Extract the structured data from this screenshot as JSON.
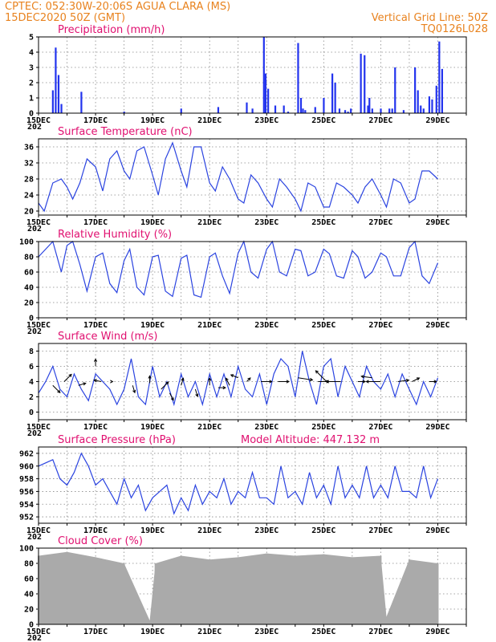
{
  "header": {
    "line1_left": "CPTEC:   052:30W-20:06S   AGUA CLARA (MS)",
    "line2_left": "15DEC2020 50Z (GMT)",
    "line2_right": "Vertical Grid Line: 50Z",
    "line3_right": "TQ0126L028"
  },
  "colors": {
    "header": "#e8821e",
    "title": "#e01070",
    "series": "#2a43e0",
    "bar": "#2233ee",
    "cloud": "#aaaaaa"
  },
  "x_tick_labels": [
    "15DEC",
    "17DEC",
    "19DEC",
    "21DEC",
    "23DEC",
    "25DEC",
    "27DEC",
    "29DEC"
  ],
  "x_year_fragment": "202",
  "chart_data": [
    {
      "id": "precip",
      "type": "bar",
      "title": "Precipitation (mm/h)",
      "ylim": [
        0,
        5
      ],
      "yticks": [
        0,
        1,
        2,
        3,
        4,
        5
      ],
      "x": [
        0.5,
        0.6,
        0.7,
        0.8,
        1.5,
        3.0,
        5.0,
        6.3,
        7.3,
        7.5,
        7.9,
        7.96,
        8.05,
        8.3,
        8.6,
        8.75,
        9.1,
        9.2,
        9.27,
        9.35,
        9.7,
        10.0,
        10.3,
        10.4,
        10.55,
        10.75,
        10.85,
        10.95,
        11.3,
        11.43,
        11.55,
        11.6,
        11.7,
        12.0,
        12.3,
        12.4,
        12.5,
        12.8,
        13.2,
        13.3,
        13.4,
        13.5,
        13.7,
        13.8,
        13.95,
        14.05,
        14.15
      ],
      "values": [
        1.5,
        4.3,
        2.5,
        0.6,
        1.4,
        0.1,
        0.3,
        0.4,
        0.7,
        0.3,
        5.0,
        2.6,
        1.6,
        0.5,
        0.5,
        0.1,
        4.6,
        1.0,
        0.3,
        0.2,
        0.4,
        1.0,
        2.6,
        2.0,
        0.3,
        0.2,
        0.1,
        0.3,
        3.9,
        3.8,
        0.5,
        1.0,
        0.3,
        0.3,
        0.3,
        0.3,
        3.0,
        0.2,
        3.0,
        1.5,
        0.5,
        0.3,
        1.1,
        0.9,
        1.8,
        4.7,
        2.9
      ]
    },
    {
      "id": "temp",
      "type": "line",
      "title": "Surface Temperature (nC)",
      "ylim": [
        19,
        38
      ],
      "yticks": [
        20,
        24,
        28,
        32,
        36
      ],
      "x": [
        0,
        0.2,
        0.5,
        0.8,
        1.0,
        1.2,
        1.45,
        1.7,
        2.0,
        2.25,
        2.5,
        2.75,
        3.0,
        3.2,
        3.45,
        3.7,
        4.0,
        4.2,
        4.45,
        4.7,
        5.0,
        5.2,
        5.45,
        5.7,
        6.0,
        6.2,
        6.45,
        6.7,
        7.0,
        7.2,
        7.45,
        7.7,
        8.0,
        8.2,
        8.45,
        8.7,
        9.0,
        9.2,
        9.45,
        9.7,
        10.0,
        10.2,
        10.45,
        10.7,
        11.0,
        11.2,
        11.45,
        11.7,
        12.0,
        12.2,
        12.45,
        12.7,
        13.0,
        13.2,
        13.45,
        13.7,
        14.0
      ],
      "values": [
        22,
        20,
        27,
        28,
        26,
        23,
        27,
        33,
        31,
        25,
        33,
        35,
        30,
        28,
        35,
        36,
        29,
        24,
        33,
        37,
        30,
        26,
        36,
        36,
        27,
        25,
        31,
        28,
        23,
        22,
        29,
        27,
        23,
        21,
        28,
        26,
        23,
        20,
        27,
        26,
        21,
        21,
        27,
        26,
        24,
        22,
        26,
        28,
        24,
        21,
        28,
        27,
        22,
        23,
        30,
        30,
        28
      ]
    },
    {
      "id": "rh",
      "type": "line",
      "title": "Relative Humidity (%)",
      "ylim": [
        0,
        100
      ],
      "yticks": [
        0,
        20,
        40,
        60,
        80,
        100
      ],
      "x": [
        0,
        0.2,
        0.5,
        0.8,
        1.0,
        1.2,
        1.45,
        1.7,
        2.0,
        2.25,
        2.5,
        2.75,
        3.0,
        3.2,
        3.45,
        3.7,
        4.0,
        4.2,
        4.45,
        4.7,
        5.0,
        5.2,
        5.45,
        5.7,
        6.0,
        6.2,
        6.45,
        6.7,
        7.0,
        7.2,
        7.45,
        7.7,
        8.0,
        8.2,
        8.45,
        8.7,
        9.0,
        9.2,
        9.45,
        9.7,
        10.0,
        10.2,
        10.45,
        10.7,
        11.0,
        11.2,
        11.45,
        11.7,
        12.0,
        12.2,
        12.45,
        12.7,
        13.0,
        13.2,
        13.45,
        13.7,
        14.0
      ],
      "values": [
        80,
        88,
        100,
        60,
        95,
        100,
        70,
        35,
        80,
        85,
        45,
        33,
        75,
        90,
        40,
        30,
        80,
        82,
        35,
        28,
        78,
        82,
        30,
        27,
        80,
        85,
        55,
        32,
        85,
        100,
        60,
        52,
        90,
        100,
        60,
        55,
        90,
        88,
        55,
        60,
        90,
        84,
        55,
        52,
        88,
        80,
        52,
        60,
        85,
        80,
        55,
        55,
        92,
        100,
        55,
        45,
        72
      ]
    },
    {
      "id": "wind",
      "type": "line",
      "title": "Surface Wind (m/s)",
      "ylim": [
        -1,
        9
      ],
      "yticks": [
        0,
        2,
        4,
        6,
        8
      ],
      "x": [
        0,
        0.25,
        0.5,
        0.75,
        1.0,
        1.25,
        1.5,
        1.75,
        2.0,
        2.25,
        2.5,
        2.75,
        3.0,
        3.25,
        3.5,
        3.75,
        4.0,
        4.25,
        4.5,
        4.75,
        5.0,
        5.25,
        5.5,
        5.75,
        6.0,
        6.25,
        6.5,
        6.75,
        7.0,
        7.25,
        7.5,
        7.75,
        8.0,
        8.25,
        8.5,
        8.75,
        9.0,
        9.25,
        9.5,
        9.75,
        10.0,
        10.25,
        10.5,
        10.75,
        11.0,
        11.25,
        11.5,
        11.75,
        12.0,
        12.25,
        12.5,
        12.75,
        13.0,
        13.25,
        13.5,
        13.75,
        14.0
      ],
      "values": [
        2.5,
        4,
        6,
        3,
        2,
        5,
        3,
        1.5,
        5,
        4,
        3,
        1,
        3,
        7,
        2,
        1,
        6,
        2,
        4,
        1,
        5,
        2,
        4,
        1,
        5,
        2,
        5,
        2,
        6,
        3,
        2,
        5,
        1,
        5,
        7,
        6,
        2,
        8,
        4,
        1,
        6,
        7,
        2,
        6,
        4,
        2,
        6,
        4,
        3,
        5,
        2,
        5,
        3,
        1,
        4,
        2,
        4.5
      ],
      "arrows": [
        {
          "x": 0.5,
          "y": 3.5,
          "dx": 1,
          "dy": -1
        },
        {
          "x": 0.9,
          "y": 4,
          "dx": 1,
          "dy": 1
        },
        {
          "x": 1.4,
          "y": 3.5,
          "dx": 1,
          "dy": 0.3
        },
        {
          "x": 2.0,
          "y": 6,
          "dx": 0,
          "dy": 1
        },
        {
          "x": 2.2,
          "y": 4,
          "dx": -1,
          "dy": 0.2
        },
        {
          "x": 2.6,
          "y": 4,
          "dx": 0,
          "dy": 0
        },
        {
          "x": 3.3,
          "y": 3.5,
          "dx": 0.3,
          "dy": -1
        },
        {
          "x": 3.9,
          "y": 3.8,
          "dx": 0,
          "dy": 1
        },
        {
          "x": 4.3,
          "y": 3,
          "dx": 1,
          "dy": 1
        },
        {
          "x": 4.6,
          "y": 2.5,
          "dx": 0.5,
          "dy": -1
        },
        {
          "x": 5.0,
          "y": 3.5,
          "dx": 0.3,
          "dy": 1
        },
        {
          "x": 5.5,
          "y": 3,
          "dx": 0.3,
          "dy": -1
        },
        {
          "x": 6.0,
          "y": 3.5,
          "dx": 0,
          "dy": 1
        },
        {
          "x": 6.3,
          "y": 3.2,
          "dx": 1,
          "dy": 0
        },
        {
          "x": 6.7,
          "y": 3.5,
          "dx": -0.5,
          "dy": 1
        },
        {
          "x": 7.0,
          "y": 4.5,
          "dx": -1,
          "dy": 0.4
        },
        {
          "x": 7.3,
          "y": 4,
          "dx": 0.5,
          "dy": 0.5
        },
        {
          "x": 7.8,
          "y": 4,
          "dx": 1.5,
          "dy": 0
        },
        {
          "x": 8.4,
          "y": 4,
          "dx": 1.5,
          "dy": 0
        },
        {
          "x": 9.1,
          "y": 4.5,
          "dx": 2,
          "dy": -0.3
        },
        {
          "x": 9.8,
          "y": 4,
          "dx": 1.5,
          "dy": 0
        },
        {
          "x": 10.1,
          "y": 4,
          "dx": -1.5,
          "dy": 1.5
        },
        {
          "x": 10.6,
          "y": 4,
          "dx": -2,
          "dy": 0
        },
        {
          "x": 11.2,
          "y": 4,
          "dx": 1,
          "dy": 0
        },
        {
          "x": 11.7,
          "y": 4.5,
          "dx": -1.5,
          "dy": 0.2
        },
        {
          "x": 12.0,
          "y": 4,
          "dx": -2,
          "dy": 0
        },
        {
          "x": 12.6,
          "y": 4,
          "dx": 1.5,
          "dy": 0.2
        },
        {
          "x": 13.1,
          "y": 4,
          "dx": 1,
          "dy": 0.5
        },
        {
          "x": 13.7,
          "y": 4,
          "dx": 1,
          "dy": 0
        }
      ]
    },
    {
      "id": "pressure",
      "type": "line",
      "title": "Surface Pressure (hPa)",
      "annotation": "Model Altitude: 447.132 m",
      "ylim": [
        951,
        963
      ],
      "yticks": [
        952,
        954,
        956,
        958,
        960,
        962
      ],
      "x": [
        0,
        0.25,
        0.5,
        0.75,
        1.0,
        1.25,
        1.5,
        1.75,
        2.0,
        2.25,
        2.5,
        2.75,
        3.0,
        3.25,
        3.5,
        3.75,
        4.0,
        4.25,
        4.5,
        4.75,
        5.0,
        5.25,
        5.5,
        5.75,
        6.0,
        6.25,
        6.5,
        6.75,
        7.0,
        7.25,
        7.5,
        7.75,
        8.0,
        8.25,
        8.5,
        8.75,
        9.0,
        9.25,
        9.5,
        9.75,
        10.0,
        10.25,
        10.5,
        10.75,
        11.0,
        11.25,
        11.5,
        11.75,
        12.0,
        12.25,
        12.5,
        12.75,
        13.0,
        13.25,
        13.5,
        13.75,
        14.0
      ],
      "values": [
        960,
        960.5,
        961,
        958,
        957,
        959,
        962,
        960,
        957,
        958,
        956,
        954,
        958,
        955,
        957,
        953,
        955,
        956,
        957,
        952.5,
        955,
        953,
        957,
        954,
        956,
        955,
        958,
        954,
        956,
        955,
        959,
        955,
        955,
        954,
        960,
        955,
        956,
        954,
        959,
        955,
        957,
        954,
        960,
        955,
        957,
        955,
        960,
        955,
        957,
        955,
        960,
        956,
        956,
        955,
        960,
        955,
        958
      ]
    },
    {
      "id": "cloud",
      "type": "bar",
      "title": "Cloud Cover (%)",
      "ylim": [
        0,
        100
      ],
      "yticks": [
        0,
        20,
        40,
        60,
        80,
        100
      ],
      "x": [
        0,
        1,
        2,
        3,
        3.9,
        4.1,
        5,
        6,
        7,
        8,
        9,
        10,
        11,
        12,
        12.2,
        13,
        14
      ],
      "values": [
        90,
        95,
        88,
        80,
        5,
        80,
        90,
        85,
        88,
        93,
        90,
        92,
        88,
        90,
        10,
        85,
        80
      ]
    }
  ]
}
